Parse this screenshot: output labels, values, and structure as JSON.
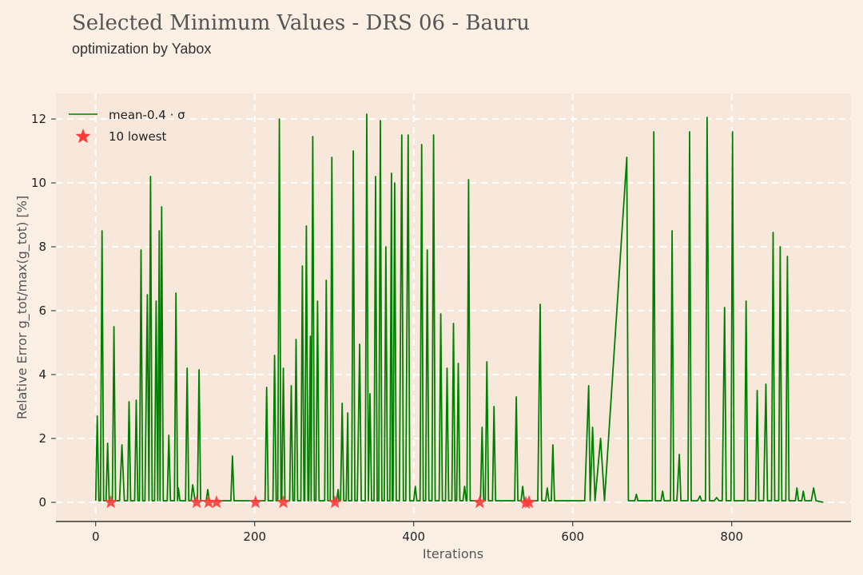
{
  "chart_data": {
    "type": "line",
    "title": "Selected Minimum Values - DRS 06 - Bauru",
    "subtitle": "optimization by Yabox",
    "xlabel": "Iterations",
    "ylabel": "Relative Error g_tot/max(g_tot) [%]",
    "xlim": [
      -50,
      950
    ],
    "ylim": [
      -0.6,
      12.8
    ],
    "xticks": [
      0,
      200,
      400,
      600,
      800
    ],
    "yticks": [
      0,
      2,
      4,
      6,
      8,
      10,
      12
    ],
    "grid": true,
    "legend_position": "top-left",
    "colors": {
      "line": "#008000",
      "marker": "#ff3b3b",
      "plot_bg": "#f8e8dc",
      "page_bg": "#fcf0e5",
      "grid": "#ffffff"
    },
    "series": [
      {
        "name": "mean-0.4 · σ",
        "kind": "line",
        "points": [
          [
            0,
            0.05
          ],
          [
            2,
            2.7
          ],
          [
            4,
            0.05
          ],
          [
            6,
            0.05
          ],
          [
            8,
            8.5
          ],
          [
            10,
            0.05
          ],
          [
            13,
            0.05
          ],
          [
            15,
            1.85
          ],
          [
            17,
            0.05
          ],
          [
            21,
            0.05
          ],
          [
            23,
            5.5
          ],
          [
            25,
            0.05
          ],
          [
            30,
            0.05
          ],
          [
            33,
            1.8
          ],
          [
            36,
            0.05
          ],
          [
            40,
            0.05
          ],
          [
            42,
            3.15
          ],
          [
            44,
            0.05
          ],
          [
            49,
            0.05
          ],
          [
            51,
            3.2
          ],
          [
            53,
            0.05
          ],
          [
            55,
            0.05
          ],
          [
            57,
            7.9
          ],
          [
            59,
            0.05
          ],
          [
            62,
            0.05
          ],
          [
            65,
            6.5
          ],
          [
            67,
            0.05
          ],
          [
            69,
            10.2
          ],
          [
            71,
            0.05
          ],
          [
            74,
            0.05
          ],
          [
            76,
            6.3
          ],
          [
            78,
            0.05
          ],
          [
            80,
            8.5
          ],
          [
            81,
            0.05
          ],
          [
            83,
            9.25
          ],
          [
            85,
            0.05
          ],
          [
            90,
            0.05
          ],
          [
            92,
            2.1
          ],
          [
            94,
            0.05
          ],
          [
            99,
            0.05
          ],
          [
            101,
            6.55
          ],
          [
            103,
            0.05
          ],
          [
            104,
            0.45
          ],
          [
            106,
            0.05
          ],
          [
            113,
            0.05
          ],
          [
            115,
            4.2
          ],
          [
            117,
            0.05
          ],
          [
            120,
            0.05
          ],
          [
            122,
            0.55
          ],
          [
            125,
            0.05
          ],
          [
            128,
            0.05
          ],
          [
            130,
            4.15
          ],
          [
            132,
            0.05
          ],
          [
            139,
            0.05
          ],
          [
            141,
            0.4
          ],
          [
            143,
            0.05
          ],
          [
            170,
            0.05
          ],
          [
            172,
            1.45
          ],
          [
            174,
            0.05
          ],
          [
            205,
            0.05
          ],
          [
            213,
            0.05
          ],
          [
            215,
            3.6
          ],
          [
            217,
            0.05
          ],
          [
            223,
            0.05
          ],
          [
            225,
            4.6
          ],
          [
            227,
            0.05
          ],
          [
            229,
            0.05
          ],
          [
            231,
            12.0
          ],
          [
            233,
            0.05
          ],
          [
            234,
            0.05
          ],
          [
            236,
            4.2
          ],
          [
            238,
            0.05
          ],
          [
            244,
            0.05
          ],
          [
            246,
            3.65
          ],
          [
            248,
            0.05
          ],
          [
            250,
            0.05
          ],
          [
            252,
            5.1
          ],
          [
            254,
            0.05
          ],
          [
            258,
            0.05
          ],
          [
            260,
            7.4
          ],
          [
            262,
            0.05
          ],
          [
            263,
            0.05
          ],
          [
            265,
            8.65
          ],
          [
            267,
            0.05
          ],
          [
            268,
            0.05
          ],
          [
            270,
            5.2
          ],
          [
            271,
            0.05
          ],
          [
            273,
            11.45
          ],
          [
            275,
            0.05
          ],
          [
            277,
            0.05
          ],
          [
            279,
            6.3
          ],
          [
            281,
            0.05
          ],
          [
            288,
            0.05
          ],
          [
            290,
            6.95
          ],
          [
            292,
            0.05
          ],
          [
            295,
            0.05
          ],
          [
            297,
            10.8
          ],
          [
            299,
            0.05
          ],
          [
            303,
            0.05
          ],
          [
            305,
            0.4
          ],
          [
            306,
            0.05
          ],
          [
            308,
            0.05
          ],
          [
            310,
            3.1
          ],
          [
            312,
            0.05
          ],
          [
            315,
            0.05
          ],
          [
            317,
            2.8
          ],
          [
            318,
            0.05
          ],
          [
            322,
            0.05
          ],
          [
            324,
            11.0
          ],
          [
            326,
            0.05
          ],
          [
            329,
            0.05
          ],
          [
            332,
            4.95
          ],
          [
            334,
            0.05
          ],
          [
            339,
            0.05
          ],
          [
            341,
            12.15
          ],
          [
            343,
            0.05
          ],
          [
            345,
            3.4
          ],
          [
            347,
            0.05
          ],
          [
            350,
            0.05
          ],
          [
            352,
            10.2
          ],
          [
            354,
            0.05
          ],
          [
            356,
            0.05
          ],
          [
            358,
            11.95
          ],
          [
            360,
            0.05
          ],
          [
            363,
            0.05
          ],
          [
            365,
            8.0
          ],
          [
            367,
            0.05
          ],
          [
            370,
            0.05
          ],
          [
            372,
            10.3
          ],
          [
            373,
            0.05
          ],
          [
            374,
            0.05
          ],
          [
            376,
            10.0
          ],
          [
            378,
            0.05
          ],
          [
            382,
            0.05
          ],
          [
            385,
            11.5
          ],
          [
            387,
            0.05
          ],
          [
            390,
            0.05
          ],
          [
            393,
            11.5
          ],
          [
            395,
            0.05
          ],
          [
            400,
            0.05
          ],
          [
            402,
            0.5
          ],
          [
            404,
            0.05
          ],
          [
            408,
            0.05
          ],
          [
            410,
            11.2
          ],
          [
            412,
            0.05
          ],
          [
            415,
            0.05
          ],
          [
            417,
            7.9
          ],
          [
            419,
            0.05
          ],
          [
            423,
            0.05
          ],
          [
            425,
            11.5
          ],
          [
            427,
            0.05
          ],
          [
            432,
            0.05
          ],
          [
            434,
            5.9
          ],
          [
            436,
            0.05
          ],
          [
            440,
            0.05
          ],
          [
            442,
            4.2
          ],
          [
            444,
            0.05
          ],
          [
            448,
            0.05
          ],
          [
            450,
            5.6
          ],
          [
            452,
            0.05
          ],
          [
            454,
            0.05
          ],
          [
            456,
            4.35
          ],
          [
            458,
            0.05
          ],
          [
            462,
            0.05
          ],
          [
            464,
            0.5
          ],
          [
            466,
            0.05
          ],
          [
            467,
            0.05
          ],
          [
            469,
            10.1
          ],
          [
            471,
            0.05
          ],
          [
            484,
            0.05
          ],
          [
            486,
            2.35
          ],
          [
            488,
            0.05
          ],
          [
            490,
            0.05
          ],
          [
            492,
            4.4
          ],
          [
            494,
            0.05
          ],
          [
            499,
            0.05
          ],
          [
            501,
            3.0
          ],
          [
            503,
            0.05
          ],
          [
            527,
            0.05
          ],
          [
            529,
            3.3
          ],
          [
            531,
            0.05
          ],
          [
            535,
            0.05
          ],
          [
            537,
            0.5
          ],
          [
            539,
            0.05
          ],
          [
            556,
            0.05
          ],
          [
            559,
            6.2
          ],
          [
            561,
            0.05
          ],
          [
            566,
            0.05
          ],
          [
            568,
            0.45
          ],
          [
            570,
            0.05
          ],
          [
            573,
            0.05
          ],
          [
            575,
            1.8
          ],
          [
            577,
            0.05
          ],
          [
            615,
            0.05
          ],
          [
            620,
            3.65
          ],
          [
            622,
            0.05
          ],
          [
            625,
            2.35
          ],
          [
            628,
            0.05
          ],
          [
            635,
            2.0
          ],
          [
            640,
            0.05
          ],
          [
            668,
            10.8
          ],
          [
            670,
            0.05
          ],
          [
            678,
            0.05
          ],
          [
            680,
            0.25
          ],
          [
            682,
            0.05
          ],
          [
            700,
            0.05
          ],
          [
            702,
            11.6
          ],
          [
            704,
            0.05
          ],
          [
            711,
            0.05
          ],
          [
            713,
            0.35
          ],
          [
            715,
            0.05
          ],
          [
            723,
            0.05
          ],
          [
            725,
            8.5
          ],
          [
            727,
            0.05
          ],
          [
            731,
            0.05
          ],
          [
            734,
            1.5
          ],
          [
            736,
            0.05
          ],
          [
            745,
            0.05
          ],
          [
            747,
            11.6
          ],
          [
            749,
            0.05
          ],
          [
            757,
            0.05
          ],
          [
            760,
            0.2
          ],
          [
            762,
            0.05
          ],
          [
            767,
            0.05
          ],
          [
            769,
            12.05
          ],
          [
            772,
            0.05
          ],
          [
            778,
            0.05
          ],
          [
            781,
            0.15
          ],
          [
            784,
            0.05
          ],
          [
            788,
            0.05
          ],
          [
            791,
            6.1
          ],
          [
            793,
            0.05
          ],
          [
            799,
            0.05
          ],
          [
            801,
            11.6
          ],
          [
            803,
            0.05
          ],
          [
            816,
            0.05
          ],
          [
            818,
            6.3
          ],
          [
            820,
            0.05
          ],
          [
            830,
            0.05
          ],
          [
            832,
            3.5
          ],
          [
            834,
            0.05
          ],
          [
            840,
            0.05
          ],
          [
            843,
            3.7
          ],
          [
            845,
            0.05
          ],
          [
            850,
            0.05
          ],
          [
            852,
            8.45
          ],
          [
            854,
            0.05
          ],
          [
            859,
            0.05
          ],
          [
            861,
            8.0
          ],
          [
            863,
            0.05
          ],
          [
            868,
            0.05
          ],
          [
            870,
            7.7
          ],
          [
            872,
            0.05
          ],
          [
            880,
            0.05
          ],
          [
            882,
            0.45
          ],
          [
            884,
            0.05
          ],
          [
            888,
            0.05
          ],
          [
            890,
            0.35
          ],
          [
            892,
            0.05
          ],
          [
            900,
            0.05
          ],
          [
            903,
            0.45
          ],
          [
            906,
            0.05
          ],
          [
            915,
            0.0
          ]
        ]
      },
      {
        "name": "10 lowest",
        "kind": "scatter",
        "x": [
          19,
          127,
          142,
          152,
          201,
          236,
          301,
          483,
          541,
          545
        ],
        "y": [
          0.0,
          0.0,
          0.0,
          0.0,
          0.0,
          0.0,
          0.0,
          0.0,
          -0.02,
          0.0
        ]
      }
    ]
  }
}
